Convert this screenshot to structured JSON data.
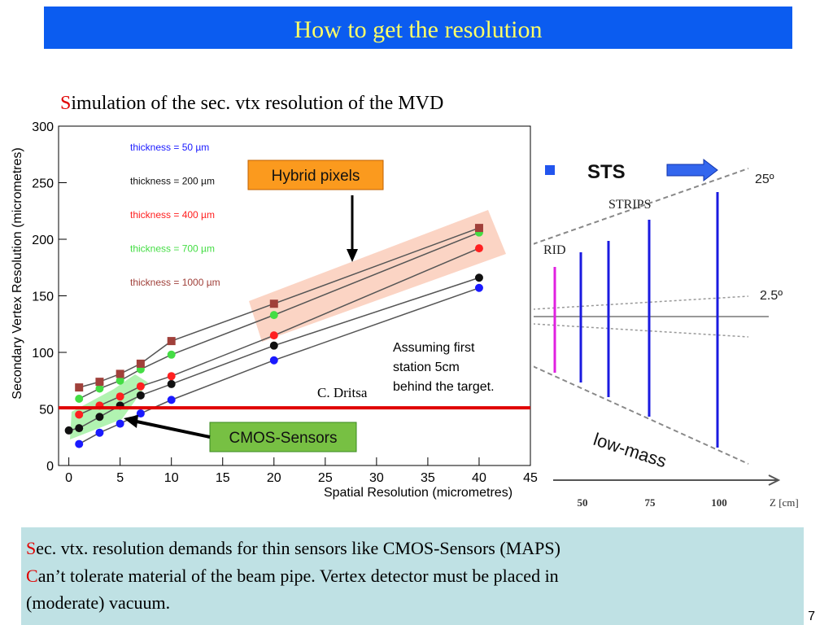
{
  "header": {
    "title": "How to get the resolution"
  },
  "subtitle": {
    "initial": "S",
    "rest": "imulation of the sec. vtx resolution of the MVD"
  },
  "chart_data": {
    "type": "line",
    "xlabel": "Spatial Resolution (micrometres)",
    "ylabel": "Secondary Vertex Resolution (micrometres)",
    "xlim": [
      -1,
      45
    ],
    "xticks": [
      0,
      5,
      10,
      15,
      20,
      25,
      30,
      35,
      40,
      45
    ],
    "ylim": [
      0,
      300
    ],
    "yticks": [
      0,
      50,
      100,
      150,
      200,
      250,
      300
    ],
    "series": [
      {
        "name": "thickness = 50 µm",
        "color": "#1a1aff",
        "x": [
          1,
          3,
          5,
          7,
          10,
          20,
          40
        ],
        "values": [
          19,
          29,
          37,
          46,
          58,
          93,
          157
        ]
      },
      {
        "name": "thickness = 200 µm",
        "color": "#111111",
        "x": [
          0,
          1,
          3,
          5,
          7,
          10,
          20,
          40
        ],
        "values": [
          31,
          33,
          43,
          53,
          62,
          72,
          106,
          166
        ]
      },
      {
        "name": "thickness = 400 µm",
        "color": "#ff2020",
        "x": [
          1,
          3,
          5,
          7,
          10,
          20,
          40
        ],
        "values": [
          45,
          53,
          61,
          70,
          79,
          115,
          192
        ]
      },
      {
        "name": "thickness = 700 µm",
        "color": "#44dd44",
        "x": [
          1,
          3,
          5,
          7,
          10,
          20,
          40
        ],
        "values": [
          59,
          68,
          75,
          85,
          98,
          133,
          206
        ]
      },
      {
        "name": "thickness = 1000 µm",
        "color": "#a0403a",
        "x": [
          1,
          3,
          5,
          7,
          10,
          20,
          40
        ],
        "values": [
          69,
          74,
          81,
          90,
          110,
          143,
          210
        ]
      }
    ],
    "reference_line": 51,
    "annotations": {
      "hybrid": "Hybrid pixels",
      "cmos": "CMOS-Sensors",
      "assumption": [
        "Assuming first",
        "station 5cm",
        "behind the target."
      ],
      "credit": "C. Dritsa"
    }
  },
  "diagram": {
    "sts": "STS",
    "strips": "STRIPS",
    "hybrid_fragment": "RID",
    "angle_outer": "25º",
    "angle_inner": "2.5º",
    "low_mass": "low-mass",
    "z_ticks": [
      "50",
      "75",
      "100"
    ],
    "z_label": "Z [cm]"
  },
  "notes": [
    {
      "initial": "S",
      "lines": [
        "ec. vtx. resolution demands for thin sensors like CMOS-Sensors (MAPS)"
      ]
    },
    {
      "initial": "C",
      "lines": [
        "an’t tolerate material of the beam pipe. Vertex detector must be placed in",
        "(moderate) vacuum."
      ]
    }
  ],
  "page_number": "7"
}
